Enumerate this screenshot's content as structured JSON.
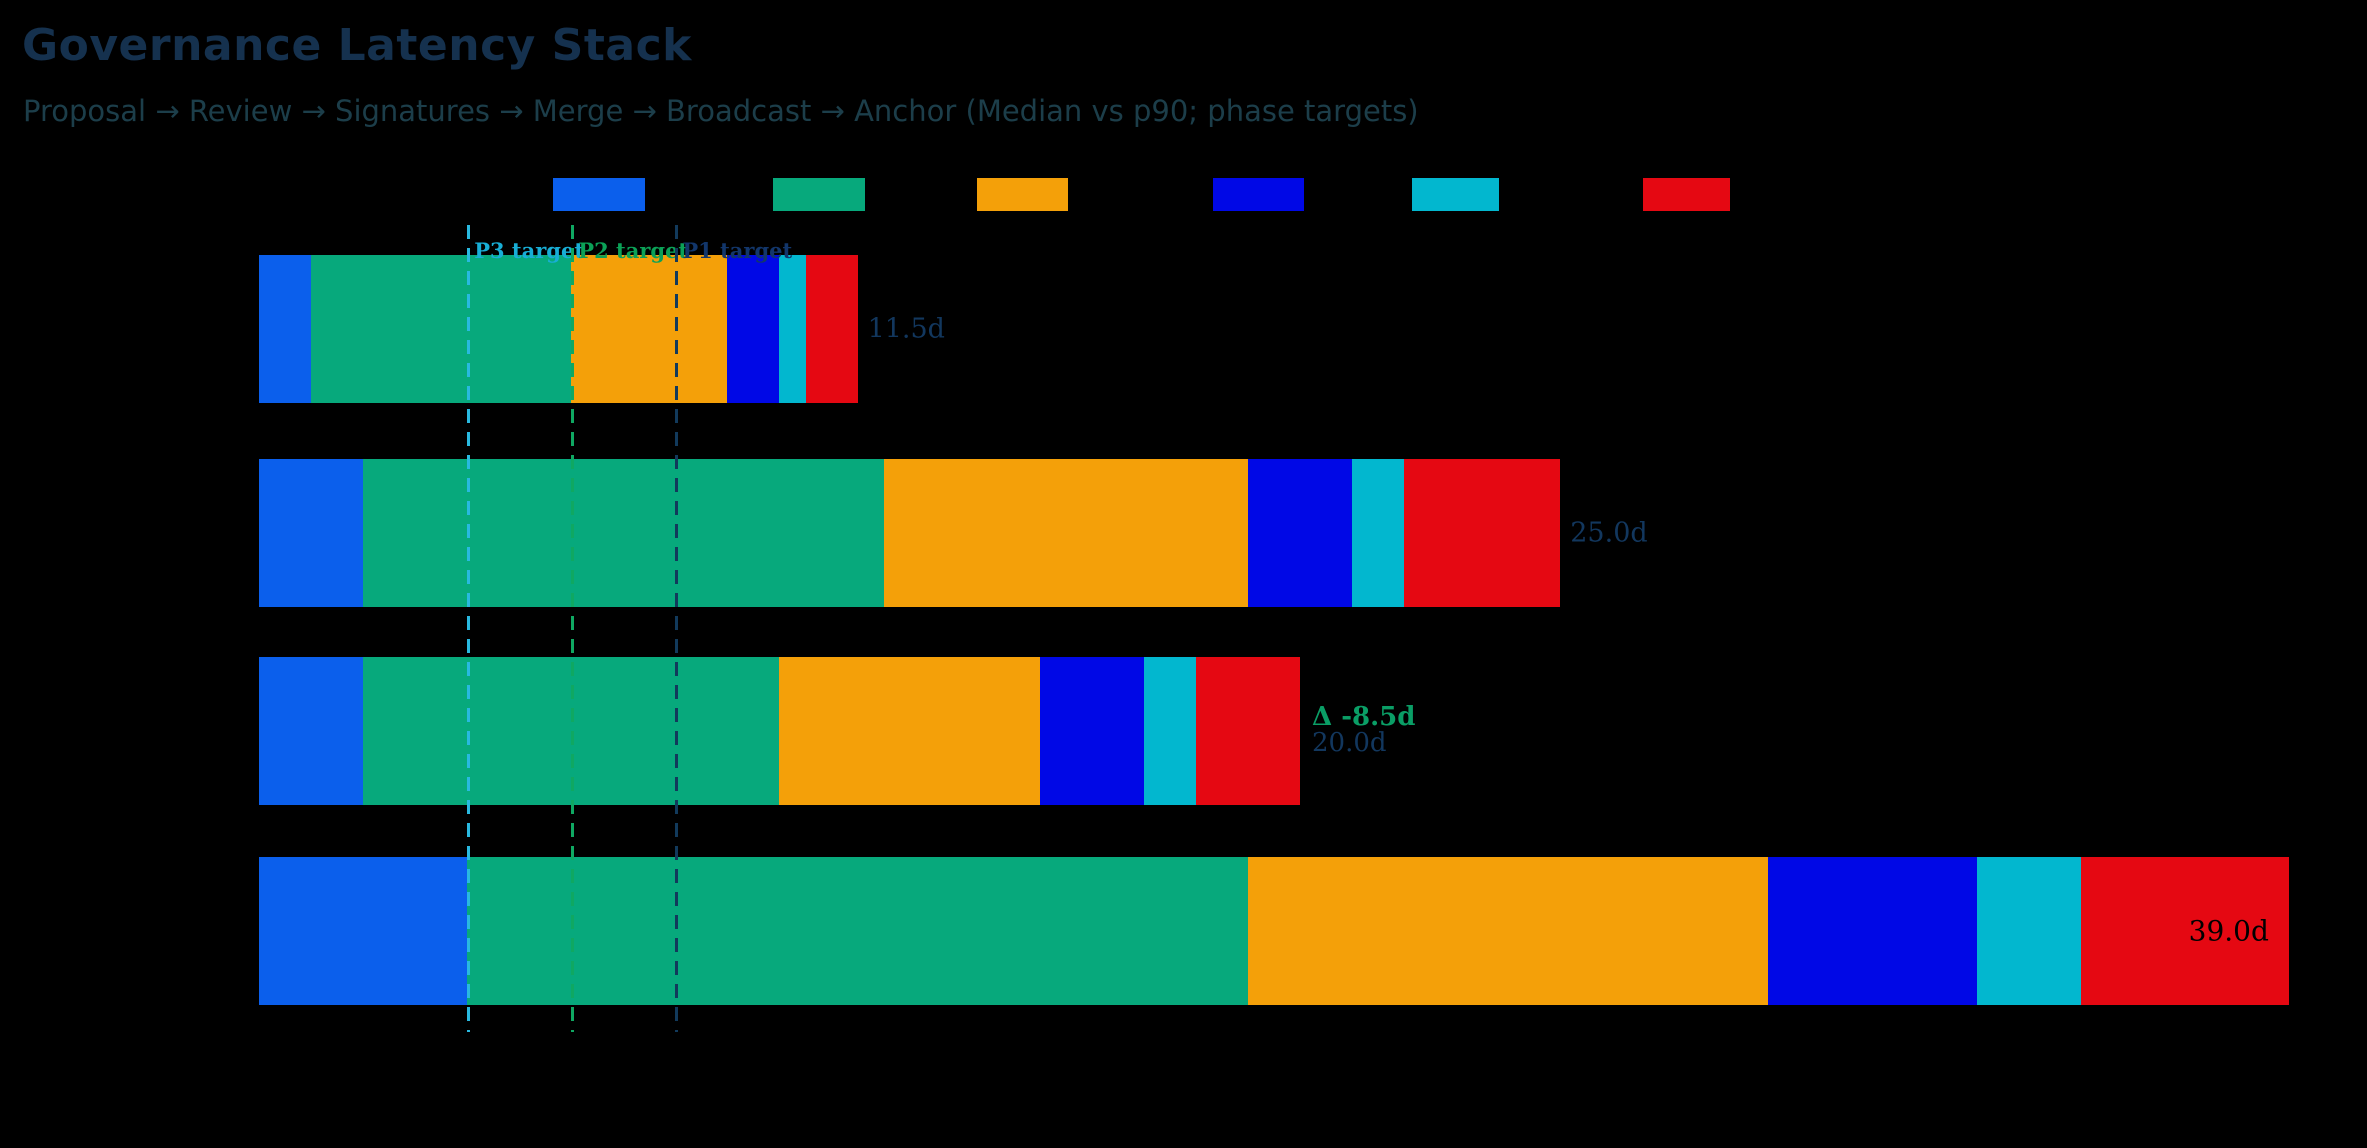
{
  "page": {
    "background": "#000000"
  },
  "header": {
    "title": "Governance Latency Stack",
    "subtitle": "Proposal → Review → Signatures → Merge → Broadcast → Anchor (Median vs p90; phase targets)"
  },
  "legend": {
    "swatch_colors": [
      "#0B5FEC",
      "#07A97C",
      "#F4A009",
      "#0008E6",
      "#02B7CF",
      "#E50812"
    ]
  },
  "chart_data": {
    "type": "bar",
    "orientation": "horizontal_stacked",
    "unit": "days",
    "xlim": [
      0,
      40
    ],
    "grid": false,
    "phases": [
      {
        "id": "proposal",
        "color": "#0B5FEC"
      },
      {
        "id": "review",
        "color": "#07A97C"
      },
      {
        "id": "signatures",
        "color": "#F4A009"
      },
      {
        "id": "merge",
        "color": "#0008E6"
      },
      {
        "id": "broadcast",
        "color": "#02B7CF"
      },
      {
        "id": "anchor",
        "color": "#E50812"
      }
    ],
    "rows": [
      {
        "segments": [
          1.0,
          5.0,
          3.0,
          1.0,
          0.5,
          1.0
        ],
        "total": 11.5,
        "total_label": "11.5d",
        "total_label_color": "#12375E",
        "label_placement": "outside"
      },
      {
        "segments": [
          2.0,
          10.0,
          7.0,
          2.0,
          1.0,
          3.0
        ],
        "total": 25.0,
        "total_label": "25.0d",
        "total_label_color": "#12375E",
        "label_placement": "outside"
      },
      {
        "segments": [
          2.0,
          8.0,
          5.0,
          2.0,
          1.0,
          2.0
        ],
        "total": 20.0,
        "total_label": "20.0d",
        "total_label_color": "#12375E",
        "label_placement": "outside",
        "delta_label": "Δ -8.5d",
        "delta_label_color": "#0A9E66"
      },
      {
        "segments": [
          4.0,
          15.0,
          10.0,
          4.0,
          2.0,
          4.0
        ],
        "total": 39.0,
        "total_label": "39.0d",
        "total_label_color": "#000000",
        "label_placement": "inside"
      }
    ],
    "targets": [
      {
        "label": "P3 target",
        "value": 4.0,
        "color": "#29B9E0",
        "label_color": "#18AED6"
      },
      {
        "label": "P2 target",
        "value": 6.0,
        "color": "#0FA862",
        "label_color": "#0BA157"
      },
      {
        "label": "P1 target",
        "value": 8.0,
        "color": "#123A5C",
        "label_color": "#12366B"
      }
    ]
  }
}
